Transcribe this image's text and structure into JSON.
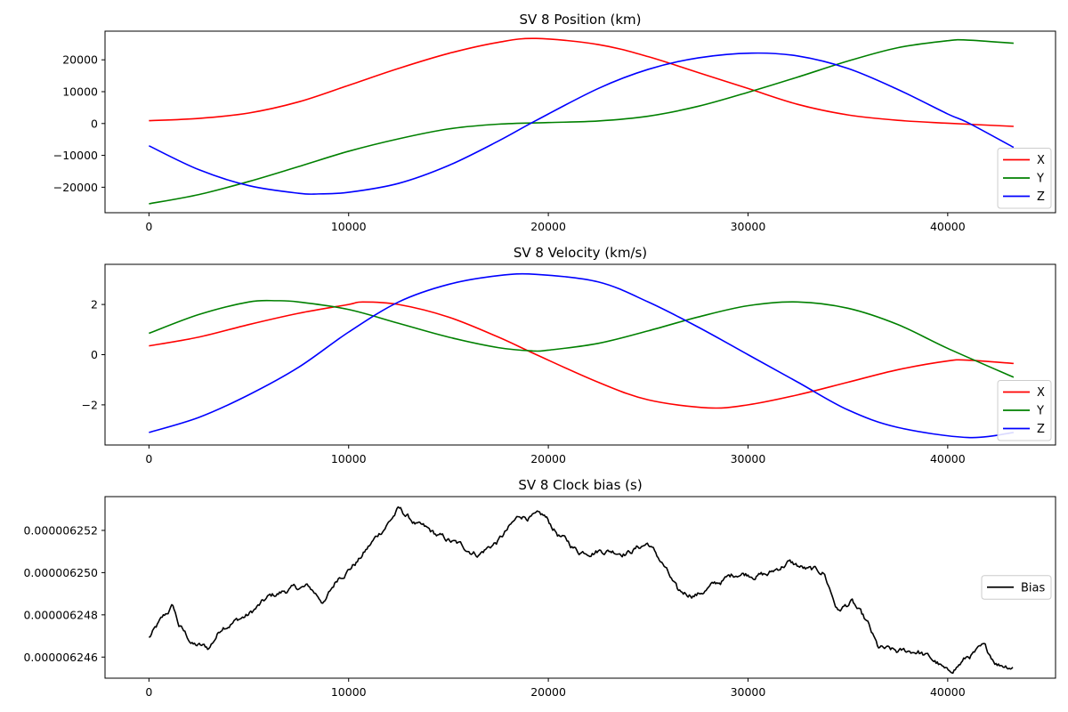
{
  "chart_data": [
    {
      "type": "line",
      "title": "SV 8 Position (km)",
      "xlim": [
        -2200,
        45400
      ],
      "ylim": [
        -28000,
        29000
      ],
      "xticks": [
        0,
        10000,
        20000,
        30000,
        40000
      ],
      "yticks": [
        -20000,
        -10000,
        0,
        10000,
        20000
      ],
      "ytick_labels": [
        "−20000",
        "−10000",
        "0",
        "10000",
        "20000"
      ],
      "legend_position": "lower-right",
      "series": [
        {
          "name": "X",
          "color": "#ff0000",
          "points": [
            [
              0,
              900
            ],
            [
              2500,
              1600
            ],
            [
              5000,
              3300
            ],
            [
              7500,
              6800
            ],
            [
              10000,
              12000
            ],
            [
              12500,
              17300
            ],
            [
              15000,
              22000
            ],
            [
              17500,
              25500
            ],
            [
              19400,
              26700
            ],
            [
              22500,
              24800
            ],
            [
              25000,
              21000
            ],
            [
              27500,
              16000
            ],
            [
              30000,
              11000
            ],
            [
              32500,
              6000
            ],
            [
              35000,
              2700
            ],
            [
              37500,
              1000
            ],
            [
              40000,
              100
            ],
            [
              43300,
              -900
            ]
          ]
        },
        {
          "name": "Y",
          "color": "#008000",
          "points": [
            [
              0,
              -25200
            ],
            [
              2500,
              -22300
            ],
            [
              5000,
              -18200
            ],
            [
              7500,
              -13500
            ],
            [
              10000,
              -8700
            ],
            [
              12500,
              -4800
            ],
            [
              15000,
              -1700
            ],
            [
              17500,
              -200
            ],
            [
              20000,
              300
            ],
            [
              22500,
              800
            ],
            [
              25000,
              2300
            ],
            [
              27500,
              5400
            ],
            [
              30000,
              9800
            ],
            [
              32500,
              14600
            ],
            [
              35000,
              19600
            ],
            [
              37500,
              23800
            ],
            [
              40000,
              26000
            ],
            [
              41000,
              26200
            ],
            [
              43300,
              25200
            ]
          ]
        },
        {
          "name": "Z",
          "color": "#0000ff",
          "points": [
            [
              0,
              -7000
            ],
            [
              2500,
              -14500
            ],
            [
              5000,
              -19500
            ],
            [
              7500,
              -21900
            ],
            [
              8500,
              -22100
            ],
            [
              10000,
              -21600
            ],
            [
              12500,
              -18800
            ],
            [
              15000,
              -13200
            ],
            [
              17500,
              -5500
            ],
            [
              19400,
              1000
            ],
            [
              22500,
              11000
            ],
            [
              25000,
              17000
            ],
            [
              27500,
              20600
            ],
            [
              30200,
              22100
            ],
            [
              32500,
              21200
            ],
            [
              35000,
              17300
            ],
            [
              37500,
              10700
            ],
            [
              40000,
              3000
            ],
            [
              41000,
              300
            ],
            [
              43300,
              -7500
            ]
          ]
        }
      ]
    },
    {
      "type": "line",
      "title": "SV 8 Velocity (km/s)",
      "xlim": [
        -2200,
        45400
      ],
      "ylim": [
        -3.6,
        3.6
      ],
      "xticks": [
        0,
        10000,
        20000,
        30000,
        40000
      ],
      "yticks": [
        -2,
        0,
        2
      ],
      "ytick_labels": [
        "−2",
        "0",
        "2"
      ],
      "legend_position": "lower-right",
      "series": [
        {
          "name": "X",
          "color": "#ff0000",
          "points": [
            [
              0,
              0.35
            ],
            [
              2500,
              0.7
            ],
            [
              5000,
              1.2
            ],
            [
              7500,
              1.65
            ],
            [
              10000,
              2.0
            ],
            [
              10700,
              2.1
            ],
            [
              12500,
              2.0
            ],
            [
              15000,
              1.5
            ],
            [
              17500,
              0.7
            ],
            [
              19400,
              0.0
            ],
            [
              22500,
              -1.1
            ],
            [
              25000,
              -1.8
            ],
            [
              28000,
              -2.12
            ],
            [
              30000,
              -2.0
            ],
            [
              32500,
              -1.6
            ],
            [
              35000,
              -1.1
            ],
            [
              37500,
              -0.6
            ],
            [
              40000,
              -0.25
            ],
            [
              41000,
              -0.22
            ],
            [
              43300,
              -0.35
            ]
          ]
        },
        {
          "name": "Y",
          "color": "#008000",
          "points": [
            [
              0,
              0.85
            ],
            [
              2500,
              1.6
            ],
            [
              5000,
              2.1
            ],
            [
              6400,
              2.15
            ],
            [
              7500,
              2.1
            ],
            [
              10000,
              1.8
            ],
            [
              12500,
              1.25
            ],
            [
              15000,
              0.7
            ],
            [
              17500,
              0.28
            ],
            [
              19200,
              0.15
            ],
            [
              20000,
              0.18
            ],
            [
              22500,
              0.45
            ],
            [
              25000,
              0.95
            ],
            [
              27500,
              1.5
            ],
            [
              30000,
              1.95
            ],
            [
              32500,
              2.1
            ],
            [
              35000,
              1.85
            ],
            [
              37500,
              1.2
            ],
            [
              40000,
              0.25
            ],
            [
              43300,
              -0.9
            ]
          ]
        },
        {
          "name": "Z",
          "color": "#0000ff",
          "points": [
            [
              0,
              -3.1
            ],
            [
              2500,
              -2.5
            ],
            [
              5000,
              -1.6
            ],
            [
              7500,
              -0.5
            ],
            [
              10000,
              0.9
            ],
            [
              12500,
              2.1
            ],
            [
              15000,
              2.8
            ],
            [
              17500,
              3.15
            ],
            [
              19400,
              3.2
            ],
            [
              22500,
              2.9
            ],
            [
              25000,
              2.1
            ],
            [
              27500,
              1.1
            ],
            [
              30000,
              0.0
            ],
            [
              32500,
              -1.1
            ],
            [
              35000,
              -2.2
            ],
            [
              37500,
              -2.9
            ],
            [
              41000,
              -3.3
            ],
            [
              43300,
              -3.1
            ]
          ]
        }
      ]
    },
    {
      "type": "line",
      "title": "SV 8 Clock bias (s)",
      "xlim": [
        -2200,
        45400
      ],
      "ylim": [
        6.245e-06,
        6.2536e-06
      ],
      "xticks": [
        0,
        10000,
        20000,
        30000,
        40000
      ],
      "yticks": [
        6.246e-06,
        6.248e-06,
        6.25e-06,
        6.252e-06
      ],
      "ytick_labels": [
        "0.000006246",
        "0.000006248",
        "0.000006250",
        "0.000006252"
      ],
      "legend_position": "center-right",
      "series": [
        {
          "name": "Bias",
          "color": "#000000",
          "points": [
            [
              0,
              6.2469e-06
            ],
            [
              700,
              6.2478e-06
            ],
            [
              1200,
              6.2484e-06
            ],
            [
              1500,
              6.2475e-06
            ],
            [
              2200,
              6.2466e-06
            ],
            [
              3000,
              6.2464e-06
            ],
            [
              3700,
              6.2475e-06
            ],
            [
              5000,
              6.248e-06
            ],
            [
              6000,
              6.2488e-06
            ],
            [
              7000,
              6.2492e-06
            ],
            [
              8000,
              6.2493e-06
            ],
            [
              8800,
              6.2486e-06
            ],
            [
              9500,
              6.2498e-06
            ],
            [
              10500,
              6.2506e-06
            ],
            [
              11500,
              6.2518e-06
            ],
            [
              12500,
              6.253e-06
            ],
            [
              13500,
              6.2522e-06
            ],
            [
              14500,
              6.2517e-06
            ],
            [
              15500,
              6.2513e-06
            ],
            [
              16500,
              6.2509e-06
            ],
            [
              17500,
              6.2515e-06
            ],
            [
              18600,
              6.2527e-06
            ],
            [
              19800,
              6.2526e-06
            ],
            [
              20500,
              6.2518e-06
            ],
            [
              21500,
              6.251e-06
            ],
            [
              22500,
              6.2511e-06
            ],
            [
              24000,
              6.251e-06
            ],
            [
              25000,
              6.2514e-06
            ],
            [
              25800,
              6.2503e-06
            ],
            [
              26500,
              6.249e-06
            ],
            [
              27500,
              6.249e-06
            ],
            [
              28500,
              6.2495e-06
            ],
            [
              29500,
              6.25e-06
            ],
            [
              31000,
              6.2499e-06
            ],
            [
              32000,
              6.2505e-06
            ],
            [
              33000,
              6.2501e-06
            ],
            [
              33800,
              6.25e-06
            ],
            [
              34500,
              6.2482e-06
            ],
            [
              35200,
              6.2486e-06
            ],
            [
              36000,
              6.2475e-06
            ],
            [
              36500,
              6.2464e-06
            ],
            [
              37500,
              6.2462e-06
            ],
            [
              38500,
              6.2463e-06
            ],
            [
              39500,
              6.2457e-06
            ],
            [
              40000,
              6.2452e-06
            ],
            [
              41000,
              6.246e-06
            ],
            [
              41800,
              6.2464e-06
            ],
            [
              42500,
              6.2457e-06
            ],
            [
              43300,
              6.2456e-06
            ]
          ]
        }
      ]
    }
  ]
}
